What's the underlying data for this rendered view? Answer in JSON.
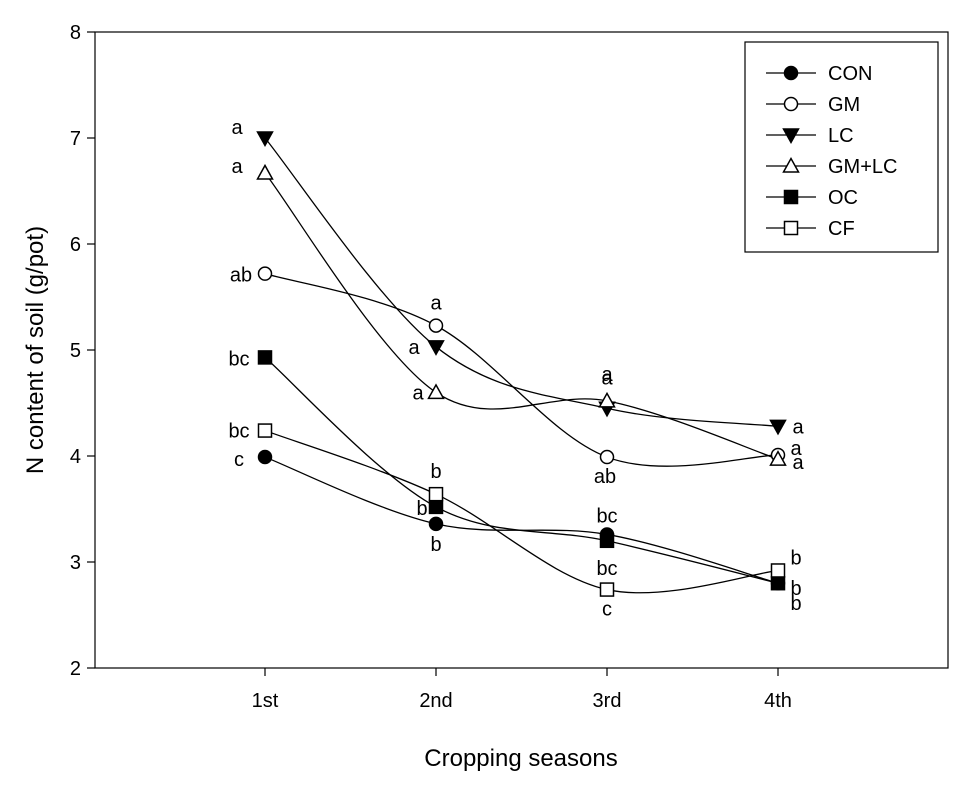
{
  "chart_data": {
    "type": "line",
    "title": "",
    "xlabel": "Cropping seasons",
    "ylabel": "N content of soil (g/pot)",
    "categories": [
      "1st",
      "2nd",
      "3rd",
      "4th"
    ],
    "ylim": [
      2,
      8
    ],
    "yticks": [
      2,
      3,
      4,
      5,
      6,
      7,
      8
    ],
    "grid": false,
    "legend_position": "top-right",
    "series": [
      {
        "name": "CON",
        "marker": "circle",
        "filled": true,
        "values": [
          3.99,
          3.36,
          3.26,
          2.8
        ],
        "labels": [
          "c",
          "b",
          "bc",
          "b"
        ]
      },
      {
        "name": "GM",
        "marker": "circle",
        "filled": false,
        "values": [
          5.72,
          5.23,
          3.99,
          4.01
        ],
        "labels": [
          "ab",
          "a",
          "ab",
          "a"
        ]
      },
      {
        "name": "LC",
        "marker": "triangle-down",
        "filled": true,
        "values": [
          7.0,
          5.03,
          4.45,
          4.28
        ],
        "labels": [
          "a",
          "a",
          "a",
          "a"
        ]
      },
      {
        "name": "GM+LC",
        "marker": "triangle-up",
        "filled": false,
        "values": [
          6.67,
          4.6,
          4.52,
          3.97
        ],
        "labels": [
          "a",
          "a",
          "a",
          "a"
        ]
      },
      {
        "name": "OC",
        "marker": "square",
        "filled": true,
        "values": [
          4.93,
          3.52,
          3.2,
          2.8
        ],
        "labels": [
          "bc",
          "b",
          "bc",
          "b"
        ]
      },
      {
        "name": "CF",
        "marker": "square",
        "filled": false,
        "values": [
          4.24,
          3.64,
          2.74,
          2.92
        ],
        "labels": [
          "bc",
          "b",
          "c",
          "b"
        ]
      }
    ]
  }
}
